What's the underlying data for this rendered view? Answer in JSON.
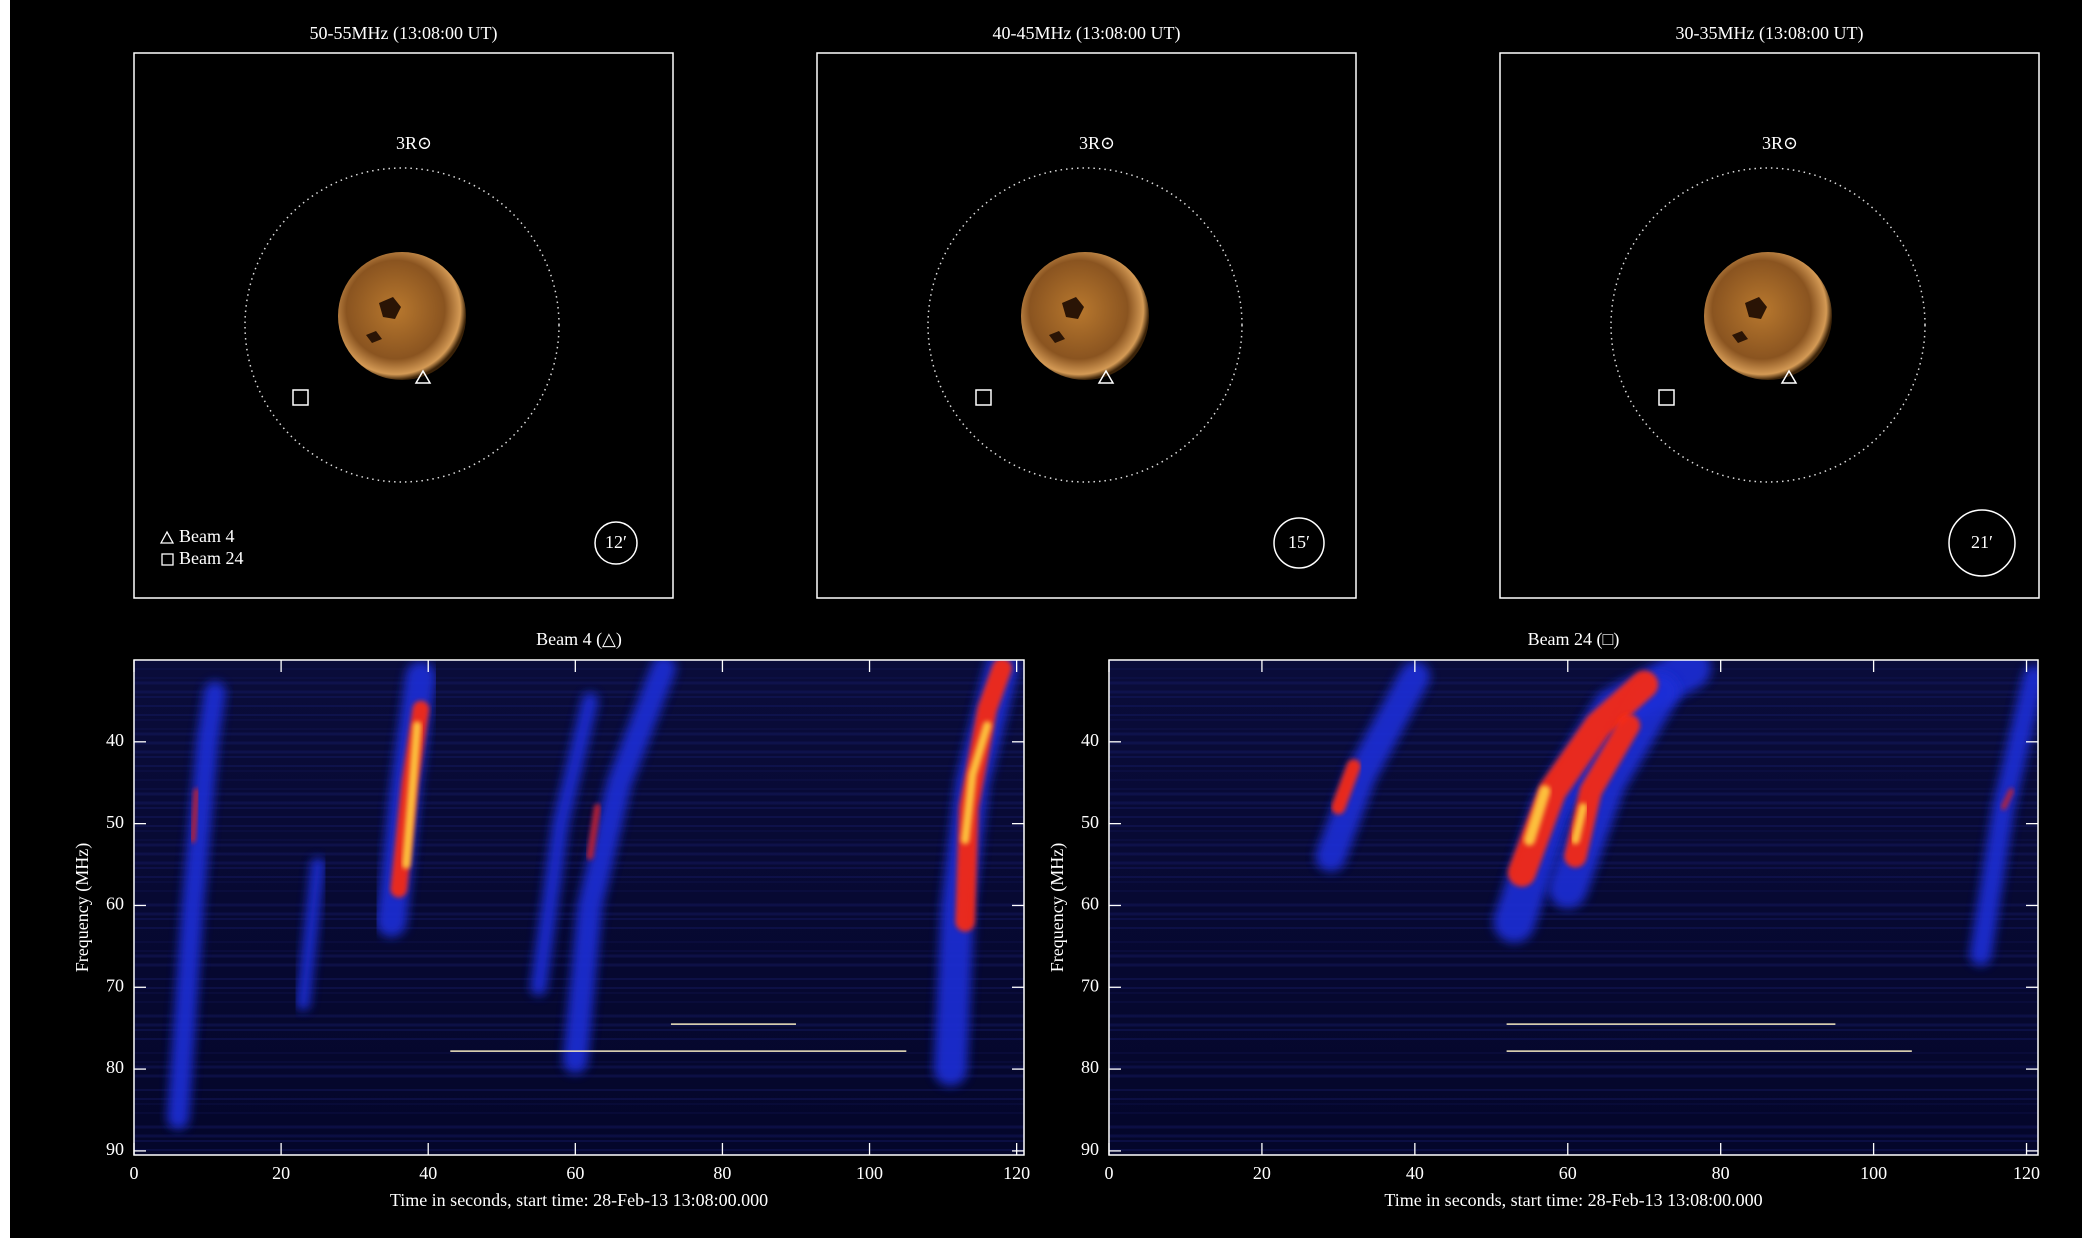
{
  "chart_data": [
    {
      "type": "image",
      "title": "50-55MHz (13:08:00 UT)",
      "circle_label": "3R⊙",
      "beam_label": "12′",
      "legend": [
        "Beam 4",
        "Beam 24"
      ]
    },
    {
      "type": "image",
      "title": "40-45MHz (13:08:00 UT)",
      "circle_label": "3R⊙",
      "beam_label": "15′"
    },
    {
      "type": "image",
      "title": "30-35MHz (13:08:00 UT)",
      "circle_label": "3R⊙",
      "beam_label": "21′"
    },
    {
      "type": "spectrogram",
      "title": "Beam 4 (△)",
      "x_label": "Time in seconds, start time: 28-Feb-13 13:08:00.000",
      "y_label": "Frequency (MHz)",
      "xlim": [
        0,
        121
      ],
      "xticks": [
        0,
        20,
        40,
        60,
        80,
        100,
        120
      ],
      "ylim": [
        30,
        90.5
      ],
      "yticks": [
        40,
        50,
        60,
        70,
        80,
        90
      ],
      "y_inverted": true
    },
    {
      "type": "spectrogram",
      "title": "Beam 24 (□)",
      "x_label": "Time in seconds, start time: 28-Feb-13 13:08:00.000",
      "y_label": "Frequency (MHz)",
      "xlim": [
        0,
        121.5
      ],
      "xticks": [
        0,
        20,
        40,
        60,
        80,
        100,
        120
      ],
      "ylim": [
        30,
        90.5
      ],
      "yticks": [
        40,
        50,
        60,
        70,
        80,
        90
      ],
      "y_inverted": true
    }
  ]
}
